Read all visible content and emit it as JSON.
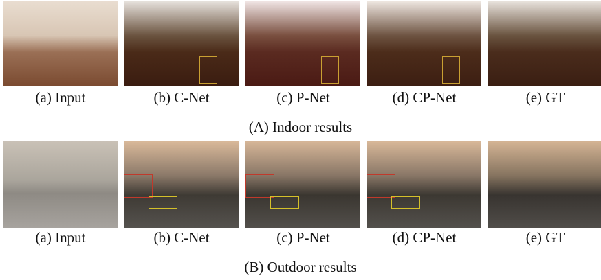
{
  "rows": [
    {
      "captions": [
        "(a) Input",
        "(b) C-Net",
        "(c) P-Net",
        "(d) CP-Net",
        "(e) GT"
      ],
      "title": "(A) Indoor results"
    },
    {
      "captions": [
        "(a) Input",
        "(b) C-Net",
        "(c) P-Net",
        "(d) CP-Net",
        "(e) GT"
      ],
      "title": "(B) Outdoor results"
    }
  ]
}
